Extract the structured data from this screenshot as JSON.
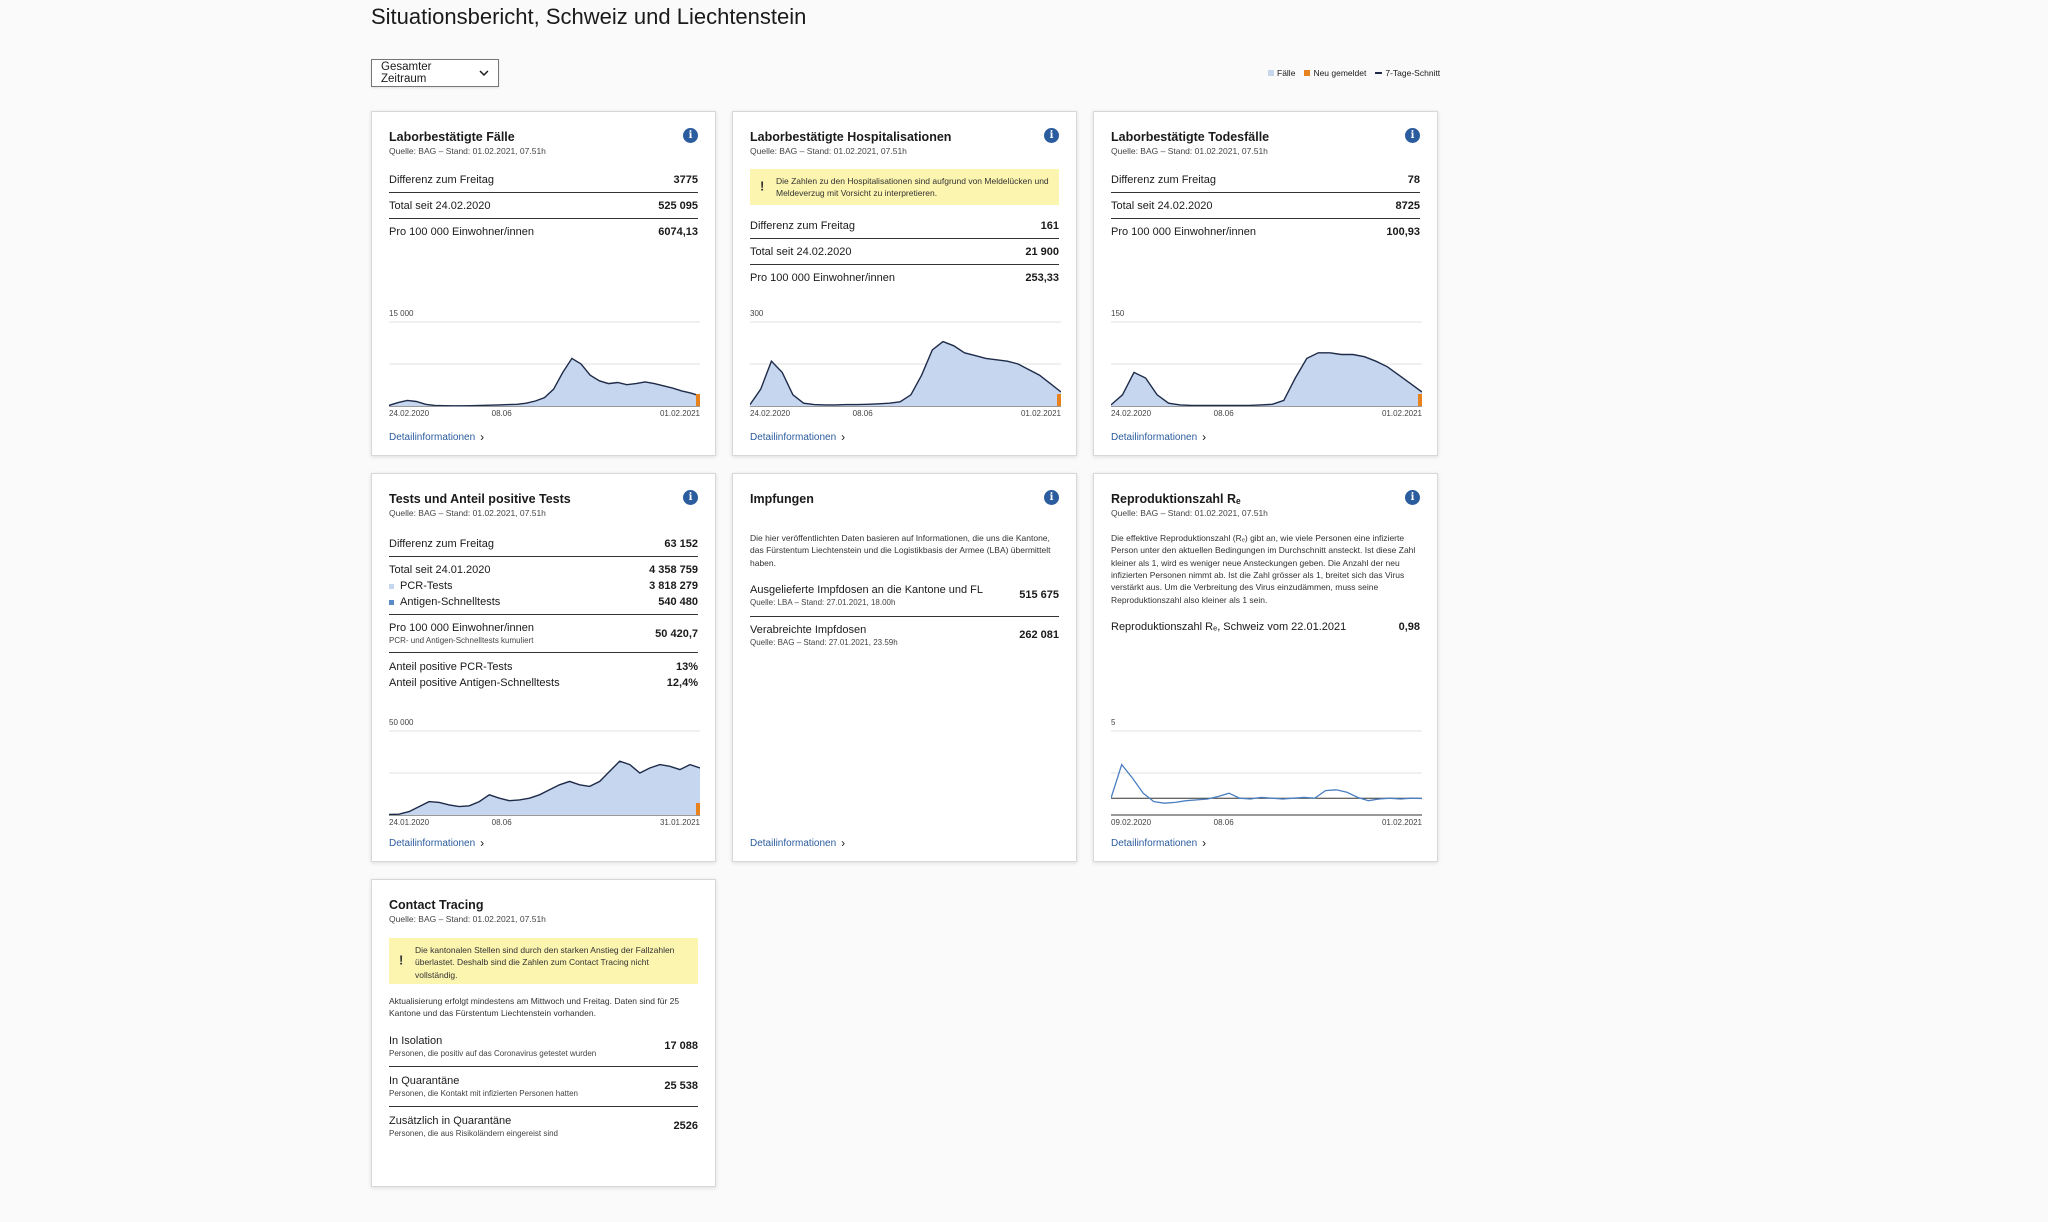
{
  "page": {
    "title": "Situationsbericht, Schweiz und Liechtenstein"
  },
  "period_select": {
    "value": "Gesamter Zeitraum"
  },
  "legend": {
    "items": [
      {
        "label": "Fälle",
        "color": "#c5d6ee"
      },
      {
        "label": "Neu gemeldet",
        "color": "#e8821f"
      },
      {
        "label": "7-Tage-Schnitt",
        "color": "#1e2b49"
      }
    ]
  },
  "colors": {
    "bar": "#c5d6ee",
    "line": "#1e2b49",
    "accent": "#e8821f",
    "link": "#2b5c9e",
    "warn_bg": "#fcf5b0"
  },
  "cards": {
    "faelle": {
      "title": "Laborbestätigte Fälle",
      "source": "Quelle: BAG – Stand: 01.02.2021, 07.51h",
      "rows": [
        {
          "label": "Differenz zum Freitag",
          "value": "3775"
        },
        {
          "label": "Total seit 24.02.2020",
          "value": "525 095"
        },
        {
          "label": "Pro 100 000 Einwohner/innen",
          "value": "6074,13"
        }
      ],
      "link": "Detailinformationen"
    },
    "hosp": {
      "title": "Laborbestätigte Hospitalisationen",
      "source": "Quelle: BAG – Stand: 01.02.2021, 07.51h",
      "warning": "Die Zahlen zu den Hospitalisationen sind aufgrund von Meldelücken und Meldeverzug mit Vorsicht zu interpretieren.",
      "rows": [
        {
          "label": "Differenz zum Freitag",
          "value": "161"
        },
        {
          "label": "Total seit 24.02.2020",
          "value": "21 900"
        },
        {
          "label": "Pro 100 000 Einwohner/innen",
          "value": "253,33"
        }
      ],
      "link": "Detailinformationen"
    },
    "tod": {
      "title": "Laborbestätigte Todesfälle",
      "source": "Quelle: BAG – Stand: 01.02.2021, 07.51h",
      "rows": [
        {
          "label": "Differenz zum Freitag",
          "value": "78"
        },
        {
          "label": "Total seit 24.02.2020",
          "value": "8725"
        },
        {
          "label": "Pro 100 000 Einwohner/innen",
          "value": "100,93"
        }
      ],
      "link": "Detailinformationen"
    },
    "tests": {
      "title": "Tests und Anteil positive Tests",
      "source": "Quelle: BAG – Stand: 01.02.2021, 07.51h",
      "diff_label": "Differenz zum Freitag",
      "diff_value": "63 152",
      "total_label": "Total seit 24.01.2020",
      "total_value": "4 358 759",
      "pcr_label": "PCR-Tests",
      "pcr_value": "3 818 279",
      "antigen_label": "Antigen-Schnelltests",
      "antigen_value": "540 480",
      "per100k_label": "Pro 100 000 Einwohner/innen",
      "per100k_sub": "PCR- und Antigen-Schnelltests kumuliert",
      "per100k_value": "50 420,7",
      "pos_pcr_label": "Anteil positive PCR-Tests",
      "pos_pcr_value": "13%",
      "pos_ag_label": "Anteil positive Antigen-Schnelltests",
      "pos_ag_value": "12,4%",
      "pcr_color": "#c5d6ee",
      "antigen_color": "#5b8cc9",
      "link": "Detailinformationen"
    },
    "impf": {
      "title": "Impfungen",
      "text": "Die hier veröffentlichten Daten basieren auf Informationen, die uns die Kantone, das Fürstentum Liechtenstein und die Logistikbasis der Armee (LBA) übermittelt haben.",
      "delivered_label": "Ausgelieferte Impfdosen an die Kantone und FL",
      "delivered_source": "Quelle: LBA – Stand: 27.01.2021, 18.00h",
      "delivered_value": "515 675",
      "given_label": "Verabreichte Impfdosen",
      "given_source": "Quelle: BAG – Stand: 27.01.2021, 23.59h",
      "given_value": "262 081",
      "link": "Detailinformationen"
    },
    "re": {
      "title": "Reproduktionszahl Rₑ",
      "source": "Quelle: BAG – Stand: 01.02.2021, 07.51h",
      "text": "Die effektive Reproduktionszahl (Rₑ) gibt an, wie viele Personen eine infizierte Person unter den aktuellen Bedingungen im Durchschnitt ansteckt. Ist diese Zahl kleiner als 1, wird es weniger neue Ansteckungen geben. Die Anzahl der neu infizierten Personen nimmt ab. Ist die Zahl grösser als 1, breitet sich das Virus verstärkt aus. Um die Verbreitung des Virus einzudämmen, muss seine Reproduktionszahl also kleiner als 1 sein.",
      "value_label": "Reproduktionszahl Rₑ, Schweiz vom 22.01.2021",
      "value": "0,98",
      "link": "Detailinformationen"
    },
    "contact": {
      "title": "Contact Tracing",
      "source": "Quelle: BAG – Stand: 01.02.2021, 07.51h",
      "warning": "Die kantonalen Stellen sind durch den starken Anstieg der Fallzahlen überlastet. Deshalb sind die Zahlen zum Contact Tracing nicht vollständig.",
      "note": "Aktualisierung erfolgt mindestens am Mittwoch und Freitag. Daten sind für 25 Kantone und das Fürstentum Liechtenstein vorhanden.",
      "isolation_label": "In Isolation",
      "isolation_sub": "Personen, die positiv auf das Coronavirus getestet wurden",
      "isolation_value": "17 088",
      "quarantine_label": "In Quarantäne",
      "quarantine_sub": "Personen, die Kontakt mit infizierten Personen hatten",
      "quarantine_value": "25 538",
      "extra_label": "Zusätzlich in Quarantäne",
      "extra_sub": "Personen, die aus Risikoländern eingereist sind",
      "extra_value": "2526"
    }
  },
  "chart_data": [
    {
      "id": "faelle",
      "type": "area",
      "ymax_label": "15 000",
      "ylim": [
        0,
        15000
      ],
      "x_ticks": [
        "24.02.2020",
        "08.06",
        "01.02.2021"
      ],
      "series": [
        {
          "name": "7-Tage-Schnitt",
          "values": [
            100,
            600,
            1000,
            800,
            300,
            100,
            50,
            30,
            40,
            60,
            100,
            150,
            200,
            250,
            300,
            500,
            900,
            1500,
            3000,
            6000,
            8500,
            7500,
            5500,
            4500,
            4000,
            4200,
            3800,
            4000,
            4300,
            4000,
            3600,
            3200,
            2700,
            2300,
            1800
          ]
        }
      ]
    },
    {
      "id": "hosp",
      "type": "area",
      "ymax_label": "300",
      "ylim": [
        0,
        300
      ],
      "x_ticks": [
        "24.02.2020",
        "08.06",
        "01.02.2021"
      ],
      "series": [
        {
          "name": "7-Tage-Schnitt",
          "values": [
            5,
            60,
            160,
            120,
            40,
            10,
            5,
            4,
            4,
            5,
            5,
            6,
            8,
            10,
            15,
            40,
            110,
            200,
            230,
            215,
            190,
            180,
            170,
            165,
            160,
            150,
            130,
            110,
            80,
            50
          ]
        }
      ]
    },
    {
      "id": "tod",
      "type": "area",
      "ymax_label": "150",
      "ylim": [
        0,
        150
      ],
      "x_ticks": [
        "24.02.2020",
        "08.06",
        "01.02.2021"
      ],
      "series": [
        {
          "name": "7-Tage-Schnitt",
          "values": [
            2,
            20,
            60,
            50,
            20,
            5,
            2,
            1,
            1,
            1,
            1,
            1,
            1,
            2,
            3,
            10,
            50,
            85,
            95,
            95,
            92,
            92,
            88,
            80,
            70,
            55,
            40,
            25
          ]
        }
      ]
    },
    {
      "id": "tests",
      "type": "area",
      "ymax_label": "50 000",
      "ylim": [
        0,
        50000
      ],
      "x_ticks": [
        "24.01.2020",
        "08.06",
        "31.01.2021"
      ],
      "series": [
        {
          "name": "7-Tage-Schnitt",
          "values": [
            300,
            500,
            2000,
            5000,
            8000,
            7500,
            6000,
            5000,
            5500,
            8000,
            12000,
            10000,
            8500,
            9000,
            10000,
            12000,
            15000,
            18000,
            20000,
            18000,
            17000,
            20000,
            26000,
            32000,
            30000,
            25000,
            28000,
            30000,
            29000,
            27000,
            30000,
            28000
          ]
        }
      ]
    },
    {
      "id": "re",
      "type": "line",
      "ymax_label": "5",
      "ylim": [
        0,
        5
      ],
      "x_ticks": [
        "09.02.2020",
        "08.06",
        "01.02.2021"
      ],
      "series": [
        {
          "name": "Rₑ",
          "values": [
            1.0,
            3.0,
            2.2,
            1.3,
            0.8,
            0.7,
            0.75,
            0.85,
            0.9,
            0.95,
            1.1,
            1.3,
            1.0,
            0.95,
            1.05,
            1.0,
            0.95,
            1.0,
            1.05,
            1.0,
            1.45,
            1.5,
            1.35,
            1.05,
            0.85,
            0.95,
            1.0,
            0.95,
            1.0,
            0.98
          ]
        }
      ]
    }
  ]
}
